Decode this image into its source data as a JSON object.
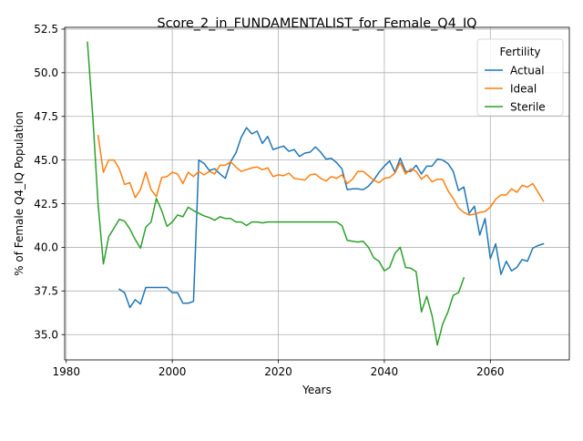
{
  "chart_data": {
    "type": "line",
    "title": "Score_2_in_FUNDAMENTALIST_for_Female_Q4_IQ",
    "xlabel": "Years",
    "ylabel": "% of Female Q4_IQ Population",
    "xlim": [
      1979.7,
      2074.9
    ],
    "ylim": [
      33.55,
      52.6
    ],
    "xticks": [
      1980,
      2000,
      2020,
      2040,
      2060
    ],
    "xtick_labels": [
      "1980",
      "2000",
      "2020",
      "2040",
      "2060"
    ],
    "yticks": [
      35.0,
      37.5,
      40.0,
      42.5,
      45.0,
      47.5,
      50.0,
      52.5
    ],
    "ytick_labels": [
      "35.0",
      "37.5",
      "40.0",
      "42.5",
      "45.0",
      "47.5",
      "50.0",
      "52.5"
    ],
    "grid": true,
    "legend": {
      "title": "Fertility",
      "position": "top-right"
    },
    "series": [
      {
        "name": "Actual",
        "color": "#1f77b4",
        "points": [
          [
            1990,
            37.6
          ],
          [
            1991,
            37.4
          ],
          [
            1992,
            36.55
          ],
          [
            1993,
            37.0
          ],
          [
            1994,
            36.75
          ],
          [
            1995,
            37.7
          ],
          [
            1996,
            37.7
          ],
          [
            1997,
            37.7
          ],
          [
            1998,
            37.7
          ],
          [
            1999,
            37.7
          ],
          [
            2000,
            37.4
          ],
          [
            2001,
            37.4
          ],
          [
            2002,
            36.8
          ],
          [
            2003,
            36.8
          ],
          [
            2004,
            36.9
          ],
          [
            2005,
            45.0
          ],
          [
            2006,
            44.8
          ],
          [
            2007,
            44.4
          ],
          [
            2008,
            44.5
          ],
          [
            2009,
            44.2
          ],
          [
            2010,
            43.95
          ],
          [
            2011,
            44.9
          ],
          [
            2012,
            45.4
          ],
          [
            2013,
            46.3
          ],
          [
            2014,
            46.85
          ],
          [
            2015,
            46.5
          ],
          [
            2016,
            46.65
          ],
          [
            2017,
            45.95
          ],
          [
            2018,
            46.35
          ],
          [
            2019,
            45.6
          ],
          [
            2020,
            45.7
          ],
          [
            2021,
            45.8
          ],
          [
            2022,
            45.5
          ],
          [
            2023,
            45.6
          ],
          [
            2024,
            45.2
          ],
          [
            2025,
            45.4
          ],
          [
            2026,
            45.45
          ],
          [
            2027,
            45.75
          ],
          [
            2028,
            45.45
          ],
          [
            2029,
            45.05
          ],
          [
            2030,
            45.1
          ],
          [
            2031,
            44.85
          ],
          [
            2032,
            44.5
          ],
          [
            2033,
            43.3
          ],
          [
            2034,
            43.35
          ],
          [
            2035,
            43.35
          ],
          [
            2036,
            43.3
          ],
          [
            2037,
            43.5
          ],
          [
            2038,
            43.85
          ],
          [
            2039,
            44.3
          ],
          [
            2040,
            44.65
          ],
          [
            2041,
            44.95
          ],
          [
            2042,
            44.3
          ],
          [
            2043,
            45.1
          ],
          [
            2044,
            44.35
          ],
          [
            2045,
            44.35
          ],
          [
            2046,
            44.7
          ],
          [
            2047,
            44.2
          ],
          [
            2048,
            44.65
          ],
          [
            2049,
            44.65
          ],
          [
            2050,
            45.05
          ],
          [
            2051,
            45.0
          ],
          [
            2052,
            44.8
          ],
          [
            2053,
            44.35
          ],
          [
            2054,
            43.25
          ],
          [
            2055,
            43.45
          ],
          [
            2056,
            41.95
          ],
          [
            2057,
            42.35
          ],
          [
            2058,
            40.7
          ],
          [
            2059,
            41.65
          ],
          [
            2060,
            39.35
          ],
          [
            2061,
            40.2
          ],
          [
            2062,
            38.45
          ],
          [
            2063,
            39.2
          ],
          [
            2064,
            38.65
          ],
          [
            2065,
            38.85
          ],
          [
            2066,
            39.3
          ],
          [
            2067,
            39.2
          ],
          [
            2068,
            39.95
          ],
          [
            2069,
            40.1
          ],
          [
            2070,
            40.2
          ]
        ]
      },
      {
        "name": "Ideal",
        "color": "#ff7f0e",
        "points": [
          [
            1986,
            46.4
          ],
          [
            1987,
            44.3
          ],
          [
            1988,
            45.0
          ],
          [
            1989,
            45.0
          ],
          [
            1990,
            44.5
          ],
          [
            1991,
            43.6
          ],
          [
            1992,
            43.7
          ],
          [
            1993,
            42.85
          ],
          [
            1994,
            43.3
          ],
          [
            1995,
            44.3
          ],
          [
            1996,
            43.3
          ],
          [
            1997,
            42.9
          ],
          [
            1998,
            44.0
          ],
          [
            1999,
            44.05
          ],
          [
            2000,
            44.3
          ],
          [
            2001,
            44.2
          ],
          [
            2002,
            43.65
          ],
          [
            2003,
            44.3
          ],
          [
            2004,
            44.05
          ],
          [
            2005,
            44.35
          ],
          [
            2006,
            44.15
          ],
          [
            2007,
            44.35
          ],
          [
            2008,
            44.2
          ],
          [
            2009,
            44.7
          ],
          [
            2010,
            44.7
          ],
          [
            2011,
            44.9
          ],
          [
            2012,
            44.6
          ],
          [
            2013,
            44.35
          ],
          [
            2014,
            44.45
          ],
          [
            2015,
            44.55
          ],
          [
            2016,
            44.6
          ],
          [
            2017,
            44.45
          ],
          [
            2018,
            44.55
          ],
          [
            2019,
            44.05
          ],
          [
            2020,
            44.15
          ],
          [
            2021,
            44.1
          ],
          [
            2022,
            44.25
          ],
          [
            2023,
            43.95
          ],
          [
            2024,
            43.9
          ],
          [
            2025,
            43.85
          ],
          [
            2026,
            44.15
          ],
          [
            2027,
            44.2
          ],
          [
            2028,
            43.95
          ],
          [
            2029,
            43.8
          ],
          [
            2030,
            44.05
          ],
          [
            2031,
            43.95
          ],
          [
            2032,
            44.15
          ],
          [
            2033,
            43.65
          ],
          [
            2034,
            43.9
          ],
          [
            2035,
            44.35
          ],
          [
            2036,
            44.35
          ],
          [
            2037,
            44.1
          ],
          [
            2038,
            43.85
          ],
          [
            2039,
            43.7
          ],
          [
            2040,
            43.95
          ],
          [
            2041,
            44.0
          ],
          [
            2042,
            44.25
          ],
          [
            2043,
            44.85
          ],
          [
            2044,
            44.2
          ],
          [
            2045,
            44.5
          ],
          [
            2046,
            44.35
          ],
          [
            2047,
            43.9
          ],
          [
            2048,
            44.15
          ],
          [
            2049,
            43.75
          ],
          [
            2050,
            43.9
          ],
          [
            2051,
            43.9
          ],
          [
            2052,
            43.25
          ],
          [
            2053,
            42.8
          ],
          [
            2054,
            42.25
          ],
          [
            2055,
            42.0
          ],
          [
            2056,
            41.85
          ],
          [
            2057,
            41.9
          ],
          [
            2058,
            42.0
          ],
          [
            2059,
            42.05
          ],
          [
            2060,
            42.3
          ],
          [
            2061,
            42.75
          ],
          [
            2062,
            43.0
          ],
          [
            2063,
            43.0
          ],
          [
            2064,
            43.35
          ],
          [
            2065,
            43.15
          ],
          [
            2066,
            43.55
          ],
          [
            2067,
            43.45
          ],
          [
            2068,
            43.65
          ],
          [
            2069,
            43.15
          ],
          [
            2070,
            42.65
          ]
        ]
      },
      {
        "name": "Sterile",
        "color": "#2ca02c",
        "points": [
          [
            1984,
            51.75
          ],
          [
            1985,
            47.5
          ],
          [
            1986,
            42.5
          ],
          [
            1987,
            39.05
          ],
          [
            1988,
            40.6
          ],
          [
            1989,
            41.1
          ],
          [
            1990,
            41.6
          ],
          [
            1991,
            41.5
          ],
          [
            1992,
            41.05
          ],
          [
            1993,
            40.45
          ],
          [
            1994,
            39.95
          ],
          [
            1995,
            41.15
          ],
          [
            1996,
            41.45
          ],
          [
            1997,
            42.8
          ],
          [
            1998,
            42.1
          ],
          [
            1999,
            41.2
          ],
          [
            2000,
            41.45
          ],
          [
            2001,
            41.85
          ],
          [
            2002,
            41.75
          ],
          [
            2003,
            42.3
          ],
          [
            2004,
            42.1
          ],
          [
            2005,
            41.95
          ],
          [
            2006,
            41.8
          ],
          [
            2007,
            41.7
          ],
          [
            2008,
            41.55
          ],
          [
            2009,
            41.75
          ],
          [
            2010,
            41.65
          ],
          [
            2011,
            41.65
          ],
          [
            2012,
            41.45
          ],
          [
            2013,
            41.45
          ],
          [
            2014,
            41.25
          ],
          [
            2015,
            41.45
          ],
          [
            2016,
            41.45
          ],
          [
            2017,
            41.4
          ],
          [
            2018,
            41.45
          ],
          [
            2019,
            41.45
          ],
          [
            2020,
            41.45
          ],
          [
            2021,
            41.45
          ],
          [
            2022,
            41.45
          ],
          [
            2023,
            41.45
          ],
          [
            2024,
            41.45
          ],
          [
            2025,
            41.45
          ],
          [
            2026,
            41.45
          ],
          [
            2027,
            41.45
          ],
          [
            2028,
            41.45
          ],
          [
            2029,
            41.45
          ],
          [
            2030,
            41.45
          ],
          [
            2031,
            41.45
          ],
          [
            2032,
            41.25
          ],
          [
            2033,
            40.4
          ],
          [
            2034,
            40.35
          ],
          [
            2035,
            40.3
          ],
          [
            2036,
            40.35
          ],
          [
            2037,
            40.0
          ],
          [
            2038,
            39.4
          ],
          [
            2039,
            39.2
          ],
          [
            2040,
            38.65
          ],
          [
            2041,
            38.85
          ],
          [
            2042,
            39.65
          ],
          [
            2043,
            40.0
          ],
          [
            2044,
            38.85
          ],
          [
            2045,
            38.8
          ],
          [
            2046,
            38.6
          ],
          [
            2047,
            36.3
          ],
          [
            2048,
            37.2
          ],
          [
            2049,
            36.1
          ],
          [
            2050,
            34.4
          ],
          [
            2051,
            35.6
          ],
          [
            2052,
            36.3
          ],
          [
            2053,
            37.25
          ],
          [
            2054,
            37.4
          ],
          [
            2055,
            38.25
          ]
        ]
      }
    ]
  }
}
